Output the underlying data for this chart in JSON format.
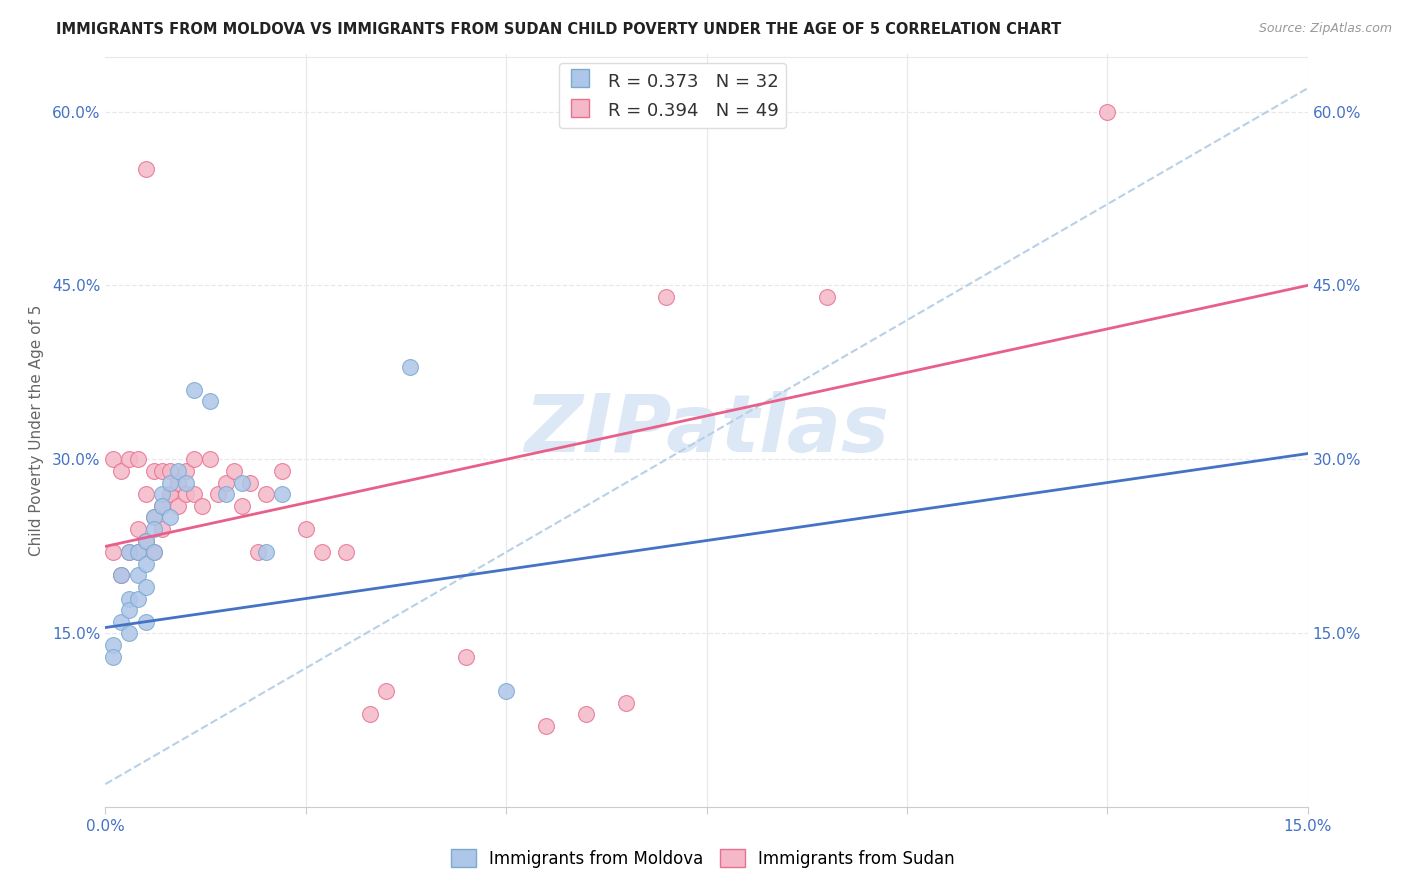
{
  "title": "IMMIGRANTS FROM MOLDOVA VS IMMIGRANTS FROM SUDAN CHILD POVERTY UNDER THE AGE OF 5 CORRELATION CHART",
  "source": "Source: ZipAtlas.com",
  "ylabel": "Child Poverty Under the Age of 5",
  "xlim": [
    0.0,
    0.15
  ],
  "ylim": [
    0.0,
    0.65
  ],
  "xticks": [
    0.0,
    0.025,
    0.05,
    0.075,
    0.1,
    0.125,
    0.15
  ],
  "yticks": [
    0.0,
    0.15,
    0.3,
    0.45,
    0.6
  ],
  "ytick_labels": [
    "",
    "15.0%",
    "30.0%",
    "45.0%",
    "60.0%"
  ],
  "xtick_labels": [
    "0.0%",
    "",
    "",
    "",
    "",
    "",
    "15.0%"
  ],
  "right_ytick_labels": [
    "15.0%",
    "30.0%",
    "45.0%",
    "60.0%"
  ],
  "background_color": "#ffffff",
  "grid_color": "#e8e8e8",
  "axis_label_color": "#4472c4",
  "watermark_text": "ZIPatlas",
  "watermark_color": "#dce8f5",
  "legend_R1": "R = 0.373",
  "legend_N1": "N = 32",
  "legend_R2": "R = 0.394",
  "legend_N2": "N = 49",
  "moldova_color": "#aec6e8",
  "sudan_color": "#f4b8c8",
  "moldova_edge": "#7aaad0",
  "sudan_edge": "#e87090",
  "line_moldova_color": "#4472c4",
  "line_sudan_color": "#e8608a",
  "dash_line_color": "#b8d0e8",
  "moldova_line_intercept": 0.155,
  "moldova_line_slope": 1.0,
  "sudan_line_intercept": 0.225,
  "sudan_line_slope": 1.5,
  "dash_line_intercept": 0.02,
  "dash_line_slope": 4.0,
  "moldova_scatter_x": [
    0.001,
    0.001,
    0.002,
    0.002,
    0.003,
    0.003,
    0.003,
    0.003,
    0.004,
    0.004,
    0.004,
    0.005,
    0.005,
    0.005,
    0.005,
    0.006,
    0.006,
    0.006,
    0.007,
    0.007,
    0.008,
    0.008,
    0.009,
    0.01,
    0.011,
    0.013,
    0.015,
    0.017,
    0.02,
    0.022,
    0.038,
    0.05
  ],
  "moldova_scatter_y": [
    0.14,
    0.13,
    0.2,
    0.16,
    0.18,
    0.22,
    0.17,
    0.15,
    0.22,
    0.2,
    0.18,
    0.23,
    0.21,
    0.19,
    0.16,
    0.25,
    0.24,
    0.22,
    0.27,
    0.26,
    0.28,
    0.25,
    0.29,
    0.28,
    0.36,
    0.35,
    0.27,
    0.28,
    0.22,
    0.27,
    0.38,
    0.1
  ],
  "sudan_scatter_x": [
    0.001,
    0.001,
    0.002,
    0.002,
    0.003,
    0.003,
    0.004,
    0.004,
    0.004,
    0.005,
    0.005,
    0.005,
    0.006,
    0.006,
    0.006,
    0.007,
    0.007,
    0.007,
    0.008,
    0.008,
    0.008,
    0.009,
    0.009,
    0.01,
    0.01,
    0.011,
    0.011,
    0.012,
    0.013,
    0.014,
    0.015,
    0.016,
    0.017,
    0.018,
    0.019,
    0.02,
    0.022,
    0.025,
    0.027,
    0.03,
    0.033,
    0.035,
    0.045,
    0.055,
    0.06,
    0.065,
    0.07,
    0.09,
    0.125
  ],
  "sudan_scatter_y": [
    0.22,
    0.3,
    0.2,
    0.29,
    0.22,
    0.3,
    0.24,
    0.22,
    0.3,
    0.23,
    0.27,
    0.55,
    0.25,
    0.29,
    0.22,
    0.29,
    0.26,
    0.24,
    0.27,
    0.29,
    0.27,
    0.28,
    0.26,
    0.27,
    0.29,
    0.3,
    0.27,
    0.26,
    0.3,
    0.27,
    0.28,
    0.29,
    0.26,
    0.28,
    0.22,
    0.27,
    0.29,
    0.24,
    0.22,
    0.22,
    0.08,
    0.1,
    0.13,
    0.07,
    0.08,
    0.09,
    0.44,
    0.44,
    0.6
  ]
}
